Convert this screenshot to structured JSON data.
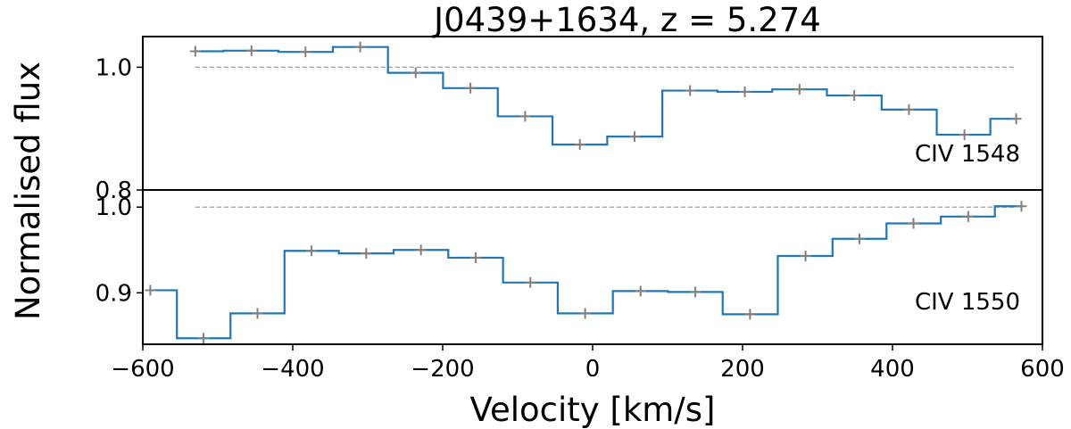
{
  "chart_data": {
    "type": "line",
    "drawstyle": "steps-mid",
    "title": "J0439+1634,   z = 5.274",
    "xlabel": "Velocity [km/s]",
    "ylabel": "Normalised flux",
    "xlim": [
      -600,
      600
    ],
    "xticks": [
      -600,
      -400,
      -200,
      0,
      200,
      400,
      600
    ],
    "xtick_labels": [
      "−600",
      "−400",
      "−200",
      "0",
      "200",
      "400",
      "600"
    ],
    "colors": {
      "line": "#1f77b4",
      "errorbar": "#808080",
      "reference": "#999999",
      "frame": "#000000"
    },
    "panels": [
      {
        "label": "CIV 1548",
        "ylim": [
          0.8,
          1.05
        ],
        "yticks": [
          0.8,
          1.0
        ],
        "ytick_labels": [
          "0.8",
          "1.0"
        ],
        "reference_level": 1.0,
        "reference_x_range": [
          -530,
          565
        ],
        "x": [
          -530,
          -455,
          -383,
          -310,
          -236,
          -163,
          -90,
          -17,
          56,
          130,
          203,
          276,
          349,
          422,
          496,
          565
        ],
        "y": [
          1.026,
          1.027,
          1.025,
          1.033,
          0.991,
          0.966,
          0.92,
          0.874,
          0.887,
          0.962,
          0.96,
          0.964,
          0.954,
          0.931,
          0.89,
          0.916
        ]
      },
      {
        "label": "CIV 1550",
        "ylim": [
          0.84,
          1.02
        ],
        "yticks": [
          0.9,
          1.0
        ],
        "ytick_labels": [
          "0.9",
          "1.0"
        ],
        "reference_level": 1.0,
        "reference_x_range": [
          -530,
          565
        ],
        "x": [
          -590,
          -519,
          -447,
          -375,
          -302,
          -229,
          -156,
          -83,
          -10,
          64,
          137,
          210,
          284,
          356,
          428,
          501,
          572
        ],
        "y": [
          0.903,
          0.847,
          0.876,
          0.949,
          0.946,
          0.95,
          0.941,
          0.912,
          0.876,
          0.902,
          0.901,
          0.875,
          0.943,
          0.963,
          0.981,
          0.989,
          1.001
        ]
      }
    ]
  }
}
